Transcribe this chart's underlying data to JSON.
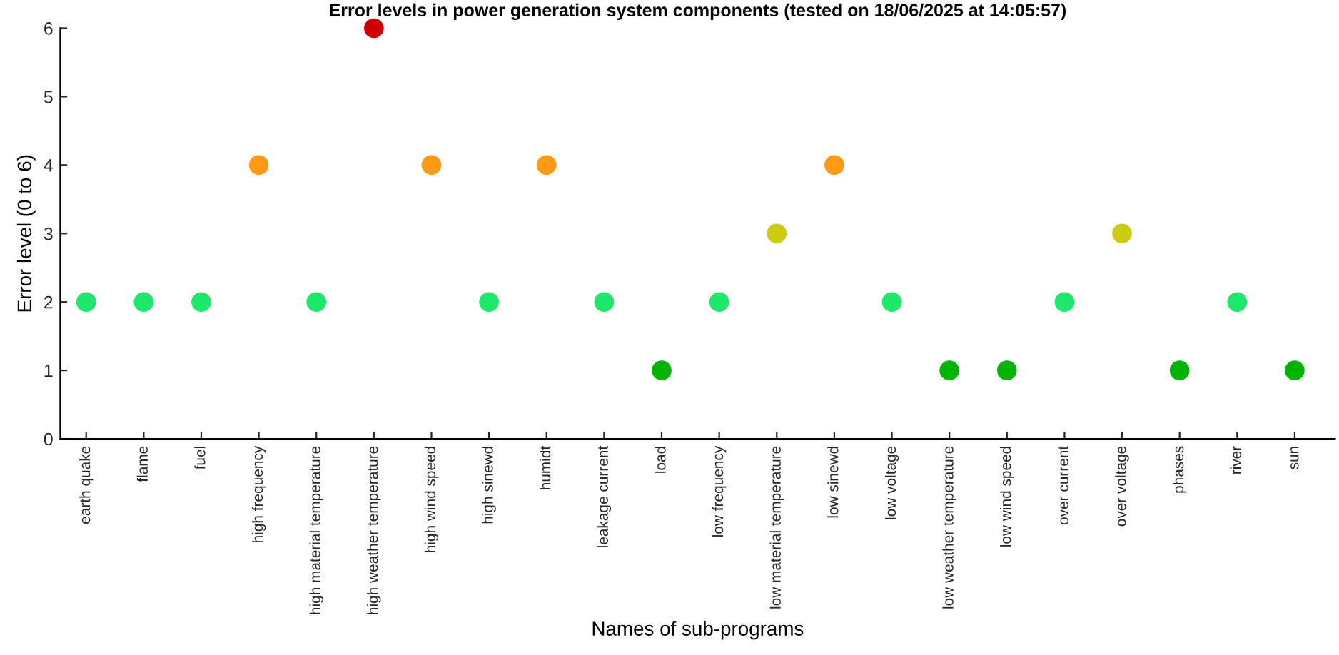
{
  "chart_data": {
    "type": "scatter",
    "title": "Error levels in power generation system components (tested on 18/06/2025 at 14:05:57)",
    "xlabel": "Names of sub-programs",
    "ylabel": "Error level (0 to 6)",
    "categories": [
      "earth quake",
      "flame",
      "fuel",
      "high frequency",
      "high material temperature",
      "high weather temperature",
      "high wind speed",
      "high sinewd",
      "humidt",
      "leakage current",
      "load",
      "low frequency",
      "low material temperature",
      "low sinewd",
      "low voltage",
      "low weather temperature",
      "low wind speed",
      "over current",
      "over voltage",
      "phases",
      "river",
      "sun"
    ],
    "values": [
      2,
      2,
      2,
      4,
      2,
      6,
      4,
      2,
      4,
      2,
      1,
      2,
      3,
      4,
      2,
      1,
      1,
      2,
      3,
      1,
      2,
      1
    ],
    "colors": [
      "#1ee86a",
      "#1ee86a",
      "#1ee86a",
      "#ff9a14",
      "#1ee86a",
      "#d00000",
      "#ff9a14",
      "#1ee86a",
      "#ff9a14",
      "#1ee86a",
      "#00b400",
      "#1ee86a",
      "#cccc10",
      "#ff9a14",
      "#1ee86a",
      "#00b400",
      "#00b400",
      "#1ee86a",
      "#cccc10",
      "#00b400",
      "#1ee86a",
      "#00b400"
    ],
    "ylim": [
      0,
      6
    ],
    "yticks": [
      0,
      1,
      2,
      3,
      4,
      5,
      6
    ],
    "marker": "circle",
    "grid": false,
    "legend": false
  }
}
